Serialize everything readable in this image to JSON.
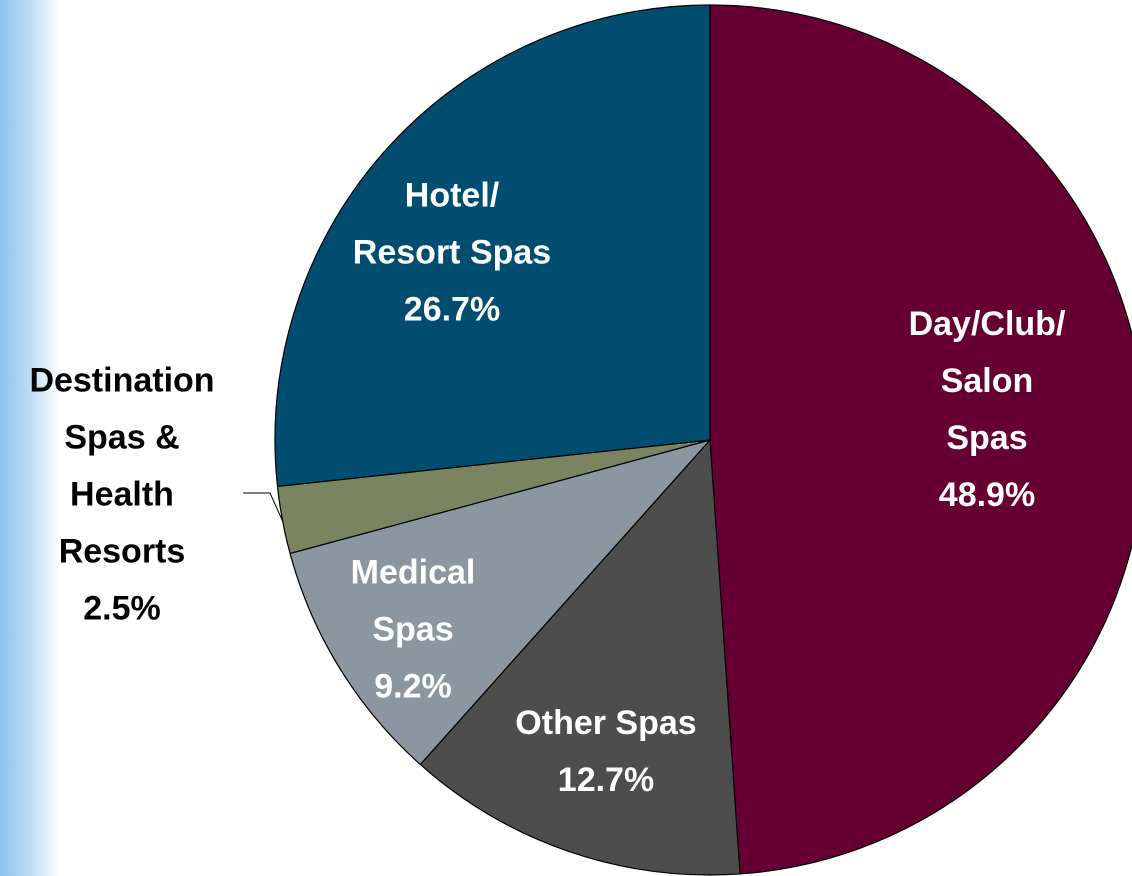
{
  "chart_data": {
    "type": "pie",
    "categories": [
      "Day/Club/\nSalon Spas",
      "Other Spas",
      "Medical\nSpas",
      "Destination\nSpas &\nHealth\nResorts",
      "Hotel/\nResort Spas"
    ],
    "values": [
      48.9,
      12.7,
      9.2,
      2.5,
      26.7
    ],
    "value_labels": [
      "48.9%",
      "12.7%",
      "9.2%",
      "2.5%",
      "26.7%"
    ],
    "colors": [
      "#660033",
      "#4d4d4d",
      "#8c96a0",
      "#7a8460",
      "#004d70"
    ]
  }
}
